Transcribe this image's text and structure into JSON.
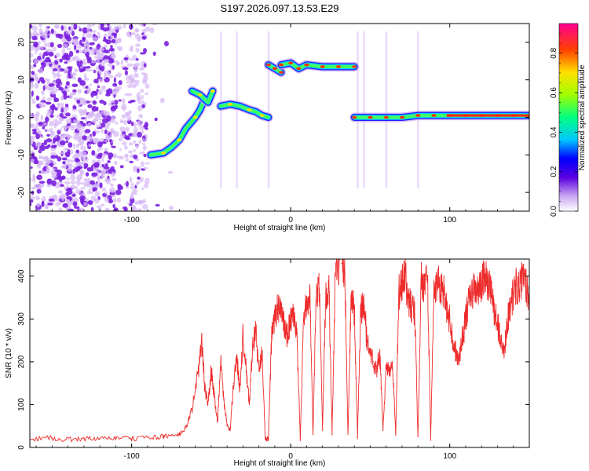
{
  "title": "S197.2026.097.13.53.E29",
  "colors": {
    "line": "#ee2b2b",
    "noise": "#7a1fe0",
    "noise_light": "#d6b8f5"
  },
  "chart_data": [
    {
      "type": "heatmap",
      "title": "S197.2026.097.13.53.E29",
      "xlabel": "Height of straight line (km)",
      "ylabel": "Frequency (Hz)",
      "xlim": [
        -164,
        150
      ],
      "ylim": [
        -25,
        25
      ],
      "xticks": [
        -100,
        0,
        100
      ],
      "xtick_labels": [
        "-100",
        "0",
        "100"
      ],
      "yticks": [
        -20,
        -10,
        0,
        10,
        20
      ],
      "ytick_labels": [
        "-20",
        "-10",
        "0",
        "10",
        "20"
      ],
      "colorbar": {
        "label": "Normalized spectral amplitude",
        "range": [
          0,
          0.95
        ],
        "ticks": [
          0.0,
          0.2,
          0.4,
          0.6,
          0.8
        ],
        "tick_labels": [
          "0.0",
          "0.2",
          "0.4",
          "0.6",
          "0.8"
        ]
      },
      "ridge_segments": [
        {
          "x": [
            -88,
            -80,
            -75,
            -70,
            -66,
            -60,
            -57,
            -54
          ],
          "freq": [
            -10,
            -9.5,
            -8,
            -6,
            -3,
            0,
            2,
            5
          ]
        },
        {
          "x": [
            -62,
            -57,
            -52,
            -49
          ],
          "freq": [
            7,
            6,
            4,
            7
          ]
        },
        {
          "x": [
            -44,
            -38,
            -32,
            -26,
            -22,
            -18,
            -14
          ],
          "freq": [
            3,
            3.5,
            3,
            2,
            1.5,
            0.5,
            0
          ]
        },
        {
          "x": [
            -14,
            -10,
            -6
          ],
          "freq": [
            14,
            13,
            12
          ]
        },
        {
          "x": [
            -6,
            0,
            5,
            10,
            20,
            30,
            40
          ],
          "freq": [
            14,
            14.5,
            13,
            14,
            13.5,
            13.5,
            13.5
          ]
        },
        {
          "x": [
            40,
            50,
            60,
            70,
            80,
            90,
            100,
            110,
            120,
            130,
            140,
            150
          ],
          "freq": [
            0,
            0,
            0,
            0,
            0.5,
            0.5,
            0.5,
            0.5,
            0.5,
            0.5,
            0.5,
            0.5
          ]
        }
      ]
    },
    {
      "type": "line",
      "xlabel": "Height of straight line (km)",
      "ylabel": "SNR (10 * v/v)",
      "xlim": [
        -164,
        150
      ],
      "ylim": [
        0,
        440
      ],
      "xticks": [
        -100,
        0,
        100
      ],
      "xtick_labels": [
        "-100",
        "0",
        "100"
      ],
      "yticks": [
        0,
        100,
        200,
        300,
        400
      ],
      "ytick_labels": [
        "0",
        "100",
        "200",
        "300",
        "400"
      ],
      "series": [
        {
          "name": "SNR",
          "x": [
            -164,
            -150,
            -140,
            -130,
            -120,
            -110,
            -100,
            -90,
            -80,
            -75,
            -70,
            -66,
            -62,
            -58,
            -56,
            -54,
            -52,
            -50,
            -48,
            -46,
            -44,
            -42,
            -40,
            -38,
            -36,
            -34,
            -32,
            -30,
            -28,
            -26,
            -24,
            -22,
            -20,
            -18,
            -16,
            -14,
            -12,
            -10,
            -8,
            -6,
            -4,
            -2,
            0,
            2,
            4,
            6,
            8,
            10,
            12,
            14,
            16,
            18,
            20,
            22,
            24,
            26,
            28,
            30,
            32,
            34,
            36,
            38,
            40,
            42,
            44,
            46,
            48,
            50,
            52,
            54,
            56,
            58,
            60,
            62,
            64,
            66,
            68,
            70,
            72,
            74,
            76,
            78,
            80,
            82,
            84,
            86,
            88,
            90,
            92,
            94,
            96,
            98,
            100,
            102,
            104,
            106,
            108,
            110,
            112,
            114,
            116,
            118,
            120,
            122,
            124,
            126,
            128,
            130,
            132,
            134,
            136,
            138,
            140,
            142,
            144,
            146,
            148,
            150
          ],
          "values": [
            20,
            22,
            18,
            21,
            19,
            23,
            20,
            24,
            25,
            28,
            30,
            45,
            90,
            180,
            250,
            140,
            100,
            180,
            120,
            60,
            200,
            110,
            50,
            40,
            150,
            210,
            140,
            260,
            180,
            100,
            240,
            270,
            180,
            220,
            20,
            20,
            260,
            300,
            330,
            320,
            280,
            260,
            300,
            300,
            250,
            20,
            300,
            340,
            360,
            30,
            350,
            370,
            40,
            360,
            380,
            30,
            400,
            420,
            430,
            420,
            30,
            360,
            320,
            25,
            320,
            330,
            250,
            220,
            200,
            180,
            220,
            40,
            190,
            180,
            200,
            30,
            360,
            380,
            400,
            340,
            330,
            310,
            25,
            390,
            380,
            400,
            20,
            360,
            390,
            380,
            370,
            320,
            300,
            250,
            220,
            210,
            260,
            300,
            340,
            360,
            370,
            360,
            380,
            400,
            380,
            360,
            320,
            290,
            250,
            220,
            290,
            330,
            360,
            380,
            370,
            400,
            380,
            350
          ]
        }
      ]
    }
  ]
}
